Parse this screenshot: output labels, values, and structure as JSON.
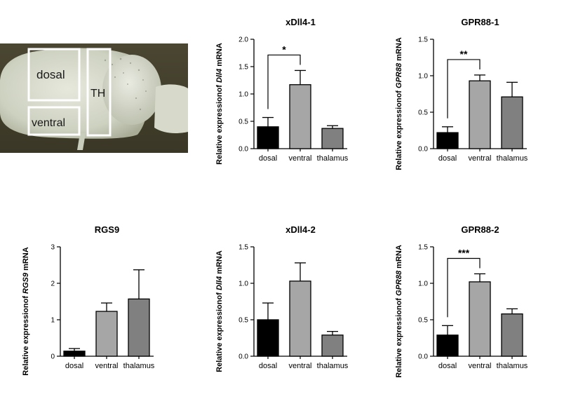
{
  "photo": {
    "regions": [
      {
        "label": "dosal"
      },
      {
        "label": "ventral"
      },
      {
        "label": "TH"
      }
    ]
  },
  "chart_data": [
    {
      "type": "bar",
      "title": "xDll4-1",
      "ylabel_pre": "Relative expressionof ",
      "ylabel_gene": "Dll4",
      "ylabel_post": " mRNA",
      "categories": [
        "dosal",
        "ventral",
        "thalamus"
      ],
      "values": [
        0.4,
        1.17,
        0.37
      ],
      "errors": [
        0.17,
        0.26,
        0.05
      ],
      "colors": [
        "#000000",
        "#a6a6a6",
        "#808080"
      ],
      "ylim": [
        0,
        2.0
      ],
      "yticks": [
        "0.0",
        "0.5",
        "1.0",
        "1.5",
        "2.0"
      ],
      "significance": [
        {
          "from": 0,
          "to": 1,
          "label": "*"
        }
      ]
    },
    {
      "type": "bar",
      "title": "GPR88-1",
      "ylabel_pre": "Relative expressionof ",
      "ylabel_gene": "GPR88",
      "ylabel_post": " mRNA",
      "categories": [
        "dosal",
        "ventral",
        "thalamus"
      ],
      "values": [
        0.22,
        0.93,
        0.71
      ],
      "errors": [
        0.08,
        0.08,
        0.2
      ],
      "colors": [
        "#000000",
        "#a6a6a6",
        "#808080"
      ],
      "ylim": [
        0,
        1.5
      ],
      "yticks": [
        "0.0",
        "0.5",
        "1.0",
        "1.5"
      ],
      "significance": [
        {
          "from": 0,
          "to": 1,
          "label": "**"
        }
      ]
    },
    {
      "type": "bar",
      "title": "RGS9",
      "ylabel_pre": "Relative expressionof ",
      "ylabel_gene": "RGS9",
      "ylabel_post": " mRNA",
      "categories": [
        "dosal",
        "ventral",
        "thalamus"
      ],
      "values": [
        0.14,
        1.23,
        1.57
      ],
      "errors": [
        0.07,
        0.23,
        0.8
      ],
      "colors": [
        "#000000",
        "#a6a6a6",
        "#808080"
      ],
      "ylim": [
        0,
        3
      ],
      "yticks": [
        "0",
        "1",
        "2",
        "3"
      ],
      "significance": []
    },
    {
      "type": "bar",
      "title": "xDll4-2",
      "ylabel_pre": "Relative expressionof ",
      "ylabel_gene": "Dll4",
      "ylabel_post": " mRNA",
      "categories": [
        "dosal",
        "ventral",
        "thalamus"
      ],
      "values": [
        0.5,
        1.03,
        0.29
      ],
      "errors": [
        0.23,
        0.25,
        0.05
      ],
      "colors": [
        "#000000",
        "#a6a6a6",
        "#808080"
      ],
      "ylim": [
        0,
        1.5
      ],
      "yticks": [
        "0.0",
        "0.5",
        "1.0",
        "1.5"
      ],
      "significance": []
    },
    {
      "type": "bar",
      "title": "GPR88-2",
      "ylabel_pre": "Relative expressionof ",
      "ylabel_gene": "GPR88",
      "ylabel_post": " mRNA",
      "categories": [
        "dosal",
        "ventral",
        "thalamus"
      ],
      "values": [
        0.29,
        1.02,
        0.58
      ],
      "errors": [
        0.13,
        0.11,
        0.07
      ],
      "colors": [
        "#000000",
        "#a6a6a6",
        "#808080"
      ],
      "ylim": [
        0,
        1.5
      ],
      "yticks": [
        "0.0",
        "0.5",
        "1.0",
        "1.5"
      ],
      "significance": [
        {
          "from": 0,
          "to": 1,
          "label": "***"
        }
      ]
    }
  ]
}
